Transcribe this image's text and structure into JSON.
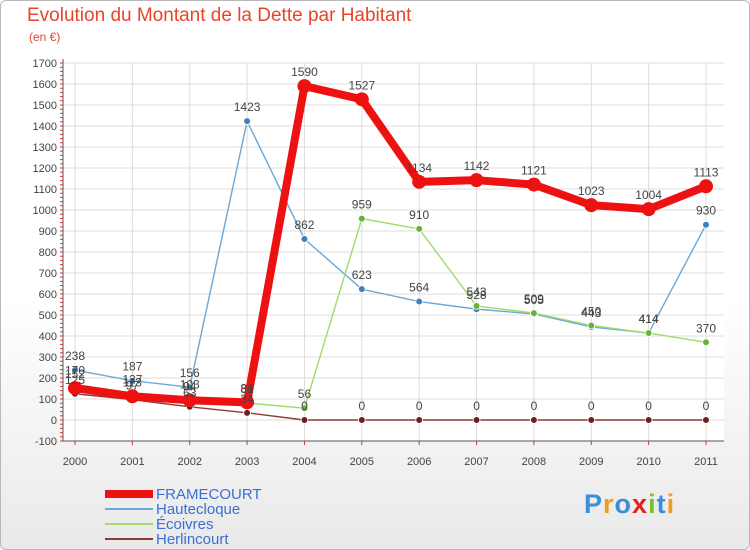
{
  "title": "Evolution du Montant de la Dette par Habitant",
  "subtitle": "(en €)",
  "logo": {
    "text": "Proxiti",
    "colors": [
      "#3a8fd8",
      "#f29b1c",
      "#3a8fd8",
      "#e3221c",
      "#7cbf28",
      "#3a8fd8",
      "#f29b1c"
    ]
  },
  "chart_data": {
    "type": "line",
    "title": "Evolution du Montant de la Dette par Habitant",
    "ylabel": "(en €)",
    "x": [
      "2000",
      "2001",
      "2002",
      "2003",
      "2004",
      "2005",
      "2006",
      "2007",
      "2008",
      "2009",
      "2010",
      "2011"
    ],
    "ylim": [
      -100,
      1700
    ],
    "yticks": [
      -100,
      0,
      100,
      200,
      300,
      400,
      500,
      600,
      700,
      800,
      900,
      1000,
      1100,
      1200,
      1300,
      1400,
      1500,
      1600,
      1700
    ],
    "grid": true,
    "legend_position": "bottom-left",
    "series": [
      {
        "name": "Hautecloque",
        "color": "#6aa8d8",
        "marker": "#3d7fbf",
        "values": [
          238,
          187,
          156,
          1423,
          862,
          623,
          564,
          528,
          505,
          443,
          414,
          930
        ]
      },
      {
        "name": "Écoivres",
        "color": "#9fdc6a",
        "marker": "#68b43a",
        "values": [
          170,
          127,
          103,
          81,
          56,
          959,
          910,
          543,
          509,
          450,
          414,
          370
        ]
      },
      {
        "name": "Herlincourt",
        "color": "#8b3a3a",
        "marker": "#6e1e1e",
        "values": [
          125,
          97,
          63,
          34,
          0,
          0,
          0,
          0,
          0,
          0,
          0,
          0
        ]
      },
      {
        "name": "FRAMECOURT",
        "color": "#ee1111",
        "marker": "#ee1111",
        "values": [
          152,
          113,
          94,
          84,
          1590,
          1527,
          1134,
          1142,
          1121,
          1023,
          1004,
          1113
        ]
      }
    ],
    "legend_order": [
      "FRAMECOURT",
      "Hautecloque",
      "Écoivres",
      "Herlincourt"
    ]
  }
}
